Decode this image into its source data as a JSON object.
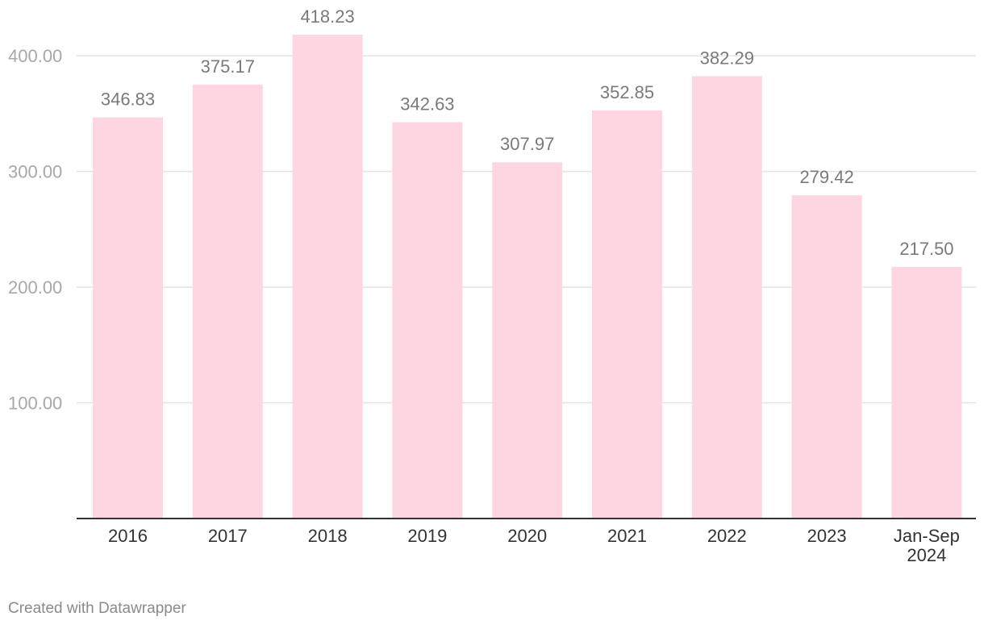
{
  "chart_data": {
    "type": "bar",
    "categories": [
      "2016",
      "2017",
      "2018",
      "2019",
      "2020",
      "2021",
      "2022",
      "2023",
      "Jan-Sep 2024"
    ],
    "values": [
      346.83,
      375.17,
      418.23,
      342.63,
      307.97,
      352.85,
      382.29,
      279.42,
      217.5
    ],
    "value_labels": [
      "346.83",
      "375.17",
      "418.23",
      "342.63",
      "307.97",
      "352.85",
      "382.29",
      "279.42",
      "217.50"
    ],
    "yticks": [
      100,
      200,
      300,
      400
    ],
    "ytick_labels": [
      "100.00",
      "200.00",
      "300.00",
      "400.00"
    ],
    "ylim": [
      0,
      418.23
    ],
    "grid": true,
    "bar_color": "#fed6e1",
    "title": "",
    "xlabel": "",
    "ylabel": ""
  },
  "footer": {
    "credit": "Created with Datawrapper"
  }
}
